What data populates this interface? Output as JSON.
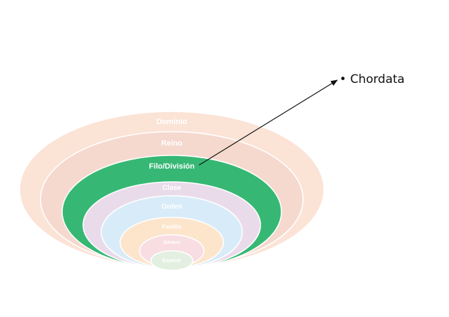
{
  "levels": [
    {
      "label": "Dominio",
      "fill": "#fbe3d6",
      "text_color": "#ffffff",
      "highlight": false
    },
    {
      "label": "Reino",
      "fill": "#f5d9ce",
      "text_color": "#ffffff",
      "highlight": false
    },
    {
      "label": "Filo/División",
      "fill": "#36b874",
      "text_color": "#ffffff",
      "highlight": true
    },
    {
      "label": "Clase",
      "fill": "#eadbea",
      "text_color": "#ffffff",
      "highlight": false
    },
    {
      "label": "Orden",
      "fill": "#d8ebf8",
      "text_color": "#ffffff",
      "highlight": false
    },
    {
      "label": "Familia",
      "fill": "#fde5cc",
      "text_color": "#ffffff",
      "highlight": false
    },
    {
      "label": "Género",
      "fill": "#f8dde2",
      "text_color": "#ffffff",
      "highlight": false
    },
    {
      "label": "Especie",
      "fill": "#e3f0e1",
      "text_color": "#ffffff",
      "highlight": false
    }
  ],
  "annotation": {
    "bullet": "•",
    "text": "Chordata",
    "arrow_color": "#111111"
  }
}
